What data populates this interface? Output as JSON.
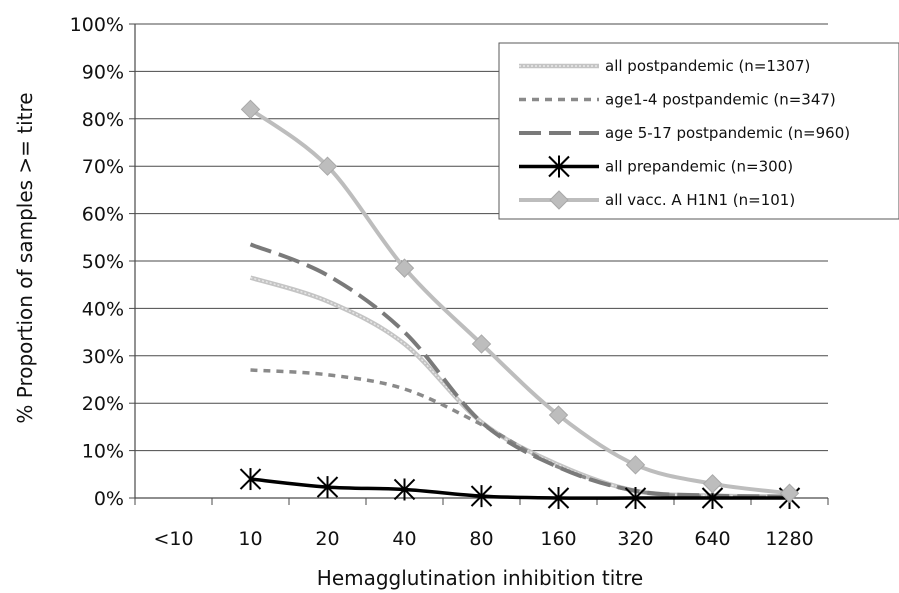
{
  "chart_data": {
    "type": "line",
    "title": "",
    "xlabel": "Hemagglutination inhibition titre",
    "ylabel": "% Proportion of samples >= titre",
    "categories": [
      "<10",
      "10",
      "20",
      "40",
      "80",
      "160",
      "320",
      "640",
      "1280"
    ],
    "y_ticks": [
      "0%",
      "10%",
      "20%",
      "30%",
      "40%",
      "50%",
      "60%",
      "70%",
      "80%",
      "90%",
      "100%"
    ],
    "ylim": [
      0,
      100
    ],
    "grid": "horizontal",
    "legend_position": "top-right",
    "series": [
      {
        "name": "all postpandemic (n=1307)",
        "style": "striped",
        "color": "#b8b8b8",
        "values": [
          null,
          46.5,
          41.5,
          32.5,
          16,
          7,
          1.5,
          0.5,
          0.3
        ]
      },
      {
        "name": "age1-4 postpandemic (n=347)",
        "style": "dotted",
        "color": "#8a8a8a",
        "values": [
          null,
          27,
          26,
          23,
          15.5,
          6.5,
          1.5,
          0.3,
          0.2
        ]
      },
      {
        "name": "age 5-17 postpandemic (n=960)",
        "style": "dashed",
        "color": "#7a7a7a",
        "values": [
          null,
          53.5,
          47,
          35,
          16,
          6.5,
          1.5,
          0.5,
          0.3
        ]
      },
      {
        "name": "all prepandemic (n=300)",
        "style": "asterisk",
        "color": "#000000",
        "values": [
          null,
          4,
          2.3,
          1.8,
          0.4,
          0,
          0,
          0,
          0
        ]
      },
      {
        "name": "all vacc. A H1N1 (n=101)",
        "style": "diamond",
        "color": "#bdbdbd",
        "values": [
          null,
          82,
          70,
          48.5,
          32.5,
          17.5,
          7,
          3,
          1
        ]
      }
    ]
  }
}
